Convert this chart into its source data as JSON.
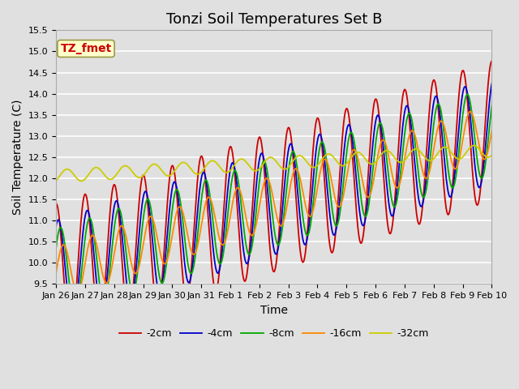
{
  "title": "Tonzi Soil Temperatures Set B",
  "xlabel": "Time",
  "ylabel": "Soil Temperature (C)",
  "annotation": "TZ_fmet",
  "ylim": [
    9.5,
    15.5
  ],
  "series_labels": [
    "-2cm",
    "-4cm",
    "-8cm",
    "-16cm",
    "-32cm"
  ],
  "series_colors": [
    "#cc0000",
    "#0000cc",
    "#00aa00",
    "#ff8800",
    "#cccc00"
  ],
  "x_tick_labels": [
    "Jan 26",
    "Jan 27",
    "Jan 28",
    "Jan 29",
    "Jan 30",
    "Jan 31",
    "Feb 1",
    "Feb 2",
    "Feb 3",
    "Feb 4",
    "Feb 5",
    "Feb 6",
    "Feb 7",
    "Feb 8",
    "Feb 9",
    "Feb 10"
  ],
  "n_days": 15,
  "plot_bg_color": "#e0e0e0",
  "fig_bg_color": "#e0e0e0",
  "grid_color": "#ffffff",
  "title_fontsize": 13,
  "tick_fontsize": 8,
  "label_fontsize": 10
}
